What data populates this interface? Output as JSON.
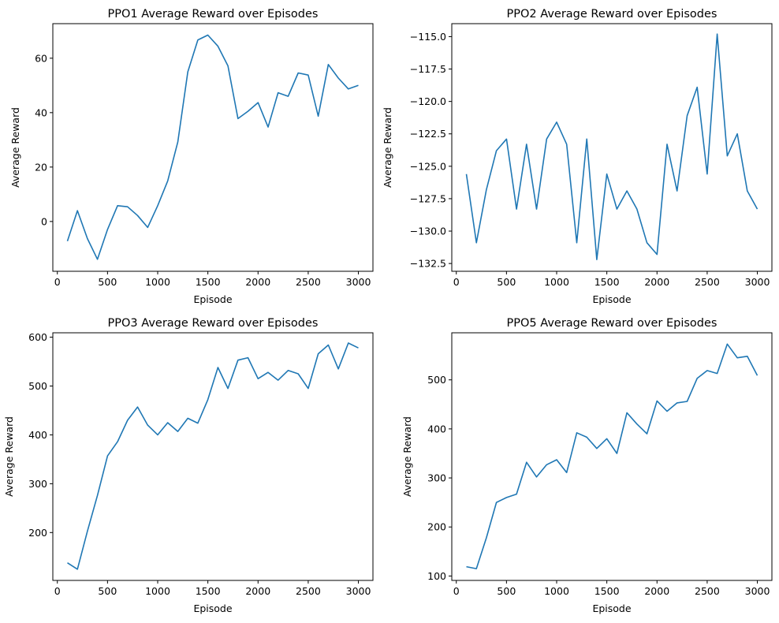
{
  "chart_data": [
    {
      "type": "line",
      "title": "PPO1 Average Reward over Episodes",
      "xlabel": "Episode",
      "ylabel": "Average Reward",
      "color": "#1f77b4",
      "xlim": [
        -45,
        3145
      ],
      "ylim": [
        -18.3,
        72.7
      ],
      "xticks": [
        0,
        500,
        1000,
        1500,
        2000,
        2500,
        3000
      ],
      "xtick_labels": [
        "0",
        "500",
        "1000",
        "1500",
        "2000",
        "2500",
        "3000"
      ],
      "yticks": [
        0,
        20,
        40,
        60
      ],
      "ytick_labels": [
        "0",
        "20",
        "40",
        "60"
      ],
      "x": [
        100,
        200,
        300,
        400,
        500,
        600,
        700,
        800,
        900,
        1000,
        1100,
        1200,
        1300,
        1400,
        1500,
        1600,
        1700,
        1800,
        1900,
        2000,
        2100,
        2200,
        2300,
        2400,
        2500,
        2600,
        2700,
        2800,
        2900,
        3000
      ],
      "y": [
        -7.2,
        4.0,
        -6.3,
        -13.9,
        -2.9,
        5.8,
        5.4,
        2.2,
        -2.2,
        5.8,
        14.9,
        29.2,
        55.0,
        66.7,
        68.5,
        64.4,
        57.2,
        37.8,
        40.5,
        43.7,
        34.7,
        47.3,
        46.0,
        54.6,
        53.8,
        38.7,
        57.7,
        52.7,
        48.7,
        50.0
      ],
      "grid": false,
      "legend": "none"
    },
    {
      "type": "line",
      "title": "PPO2 Average Reward over Episodes",
      "xlabel": "Episode",
      "ylabel": "Average Reward",
      "color": "#1f77b4",
      "xlim": [
        -45,
        3145
      ],
      "ylim": [
        -133.1,
        -114.0
      ],
      "xticks": [
        0,
        500,
        1000,
        1500,
        2000,
        2500,
        3000
      ],
      "xtick_labels": [
        "0",
        "500",
        "1000",
        "1500",
        "2000",
        "2500",
        "3000"
      ],
      "yticks": [
        -132.5,
        -130.0,
        -127.5,
        -125.0,
        -122.5,
        -120.0,
        -117.5,
        -115.0
      ],
      "ytick_labels": [
        "−132.5",
        "−130.0",
        "−127.5",
        "−125.0",
        "−122.5",
        "−120.0",
        "−117.5",
        "−115.0"
      ],
      "x": [
        100,
        200,
        300,
        400,
        500,
        600,
        700,
        800,
        900,
        1000,
        1100,
        1200,
        1300,
        1400,
        1500,
        1600,
        1700,
        1800,
        1900,
        2000,
        2100,
        2200,
        2300,
        2400,
        2500,
        2600,
        2700,
        2800,
        2900,
        3000
      ],
      "y": [
        -125.6,
        -130.9,
        -126.8,
        -123.8,
        -122.9,
        -128.3,
        -123.3,
        -128.3,
        -122.9,
        -121.6,
        -123.3,
        -130.9,
        -122.9,
        -132.2,
        -125.6,
        -128.3,
        -126.9,
        -128.3,
        -130.9,
        -131.8,
        -123.3,
        -126.9,
        -121.1,
        -118.9,
        -125.6,
        -114.8,
        -124.2,
        -122.5,
        -126.9,
        -128.3
      ],
      "grid": false,
      "legend": "none"
    },
    {
      "type": "line",
      "title": "PPO3 Average Reward over Episodes",
      "xlabel": "Episode",
      "ylabel": "Average Reward",
      "color": "#1f77b4",
      "xlim": [
        -45,
        3145
      ],
      "ylim": [
        102,
        609
      ],
      "xticks": [
        0,
        500,
        1000,
        1500,
        2000,
        2500,
        3000
      ],
      "xtick_labels": [
        "0",
        "500",
        "1000",
        "1500",
        "2000",
        "2500",
        "3000"
      ],
      "yticks": [
        200,
        300,
        400,
        500,
        600
      ],
      "ytick_labels": [
        "200",
        "300",
        "400",
        "500",
        "600"
      ],
      "x": [
        100,
        200,
        300,
        400,
        500,
        600,
        700,
        800,
        900,
        1000,
        1100,
        1200,
        1300,
        1400,
        1500,
        1600,
        1700,
        1800,
        1900,
        2000,
        2100,
        2200,
        2300,
        2400,
        2500,
        2600,
        2700,
        2800,
        2900,
        3000
      ],
      "y": [
        138,
        125,
        203,
        276,
        357,
        386,
        430,
        457,
        420,
        400,
        425,
        407,
        434,
        424,
        472,
        538,
        495,
        553,
        558,
        515,
        528,
        512,
        532,
        525,
        495,
        566,
        584,
        535,
        588,
        578
      ],
      "grid": false,
      "legend": "none"
    },
    {
      "type": "line",
      "title": "PPO5 Average Reward over Episodes",
      "xlabel": "Episode",
      "ylabel": "Average Reward",
      "color": "#1f77b4",
      "xlim": [
        -45,
        3145
      ],
      "ylim": [
        91,
        596
      ],
      "xticks": [
        0,
        500,
        1000,
        1500,
        2000,
        2500,
        3000
      ],
      "xtick_labels": [
        "0",
        "500",
        "1000",
        "1500",
        "2000",
        "2500",
        "3000"
      ],
      "yticks": [
        100,
        200,
        300,
        400,
        500
      ],
      "ytick_labels": [
        "100",
        "200",
        "300",
        "400",
        "500"
      ],
      "x": [
        100,
        200,
        300,
        400,
        500,
        600,
        700,
        800,
        900,
        1000,
        1100,
        1200,
        1300,
        1400,
        1500,
        1600,
        1700,
        1800,
        1900,
        2000,
        2100,
        2200,
        2300,
        2400,
        2500,
        2600,
        2700,
        2800,
        2900,
        3000
      ],
      "y": [
        119,
        115,
        178,
        250,
        260,
        267,
        332,
        302,
        327,
        337,
        311,
        392,
        383,
        360,
        380,
        350,
        433,
        410,
        390,
        457,
        436,
        453,
        456,
        503,
        519,
        513,
        573,
        545,
        548,
        509
      ],
      "grid": false,
      "legend": "none"
    }
  ]
}
